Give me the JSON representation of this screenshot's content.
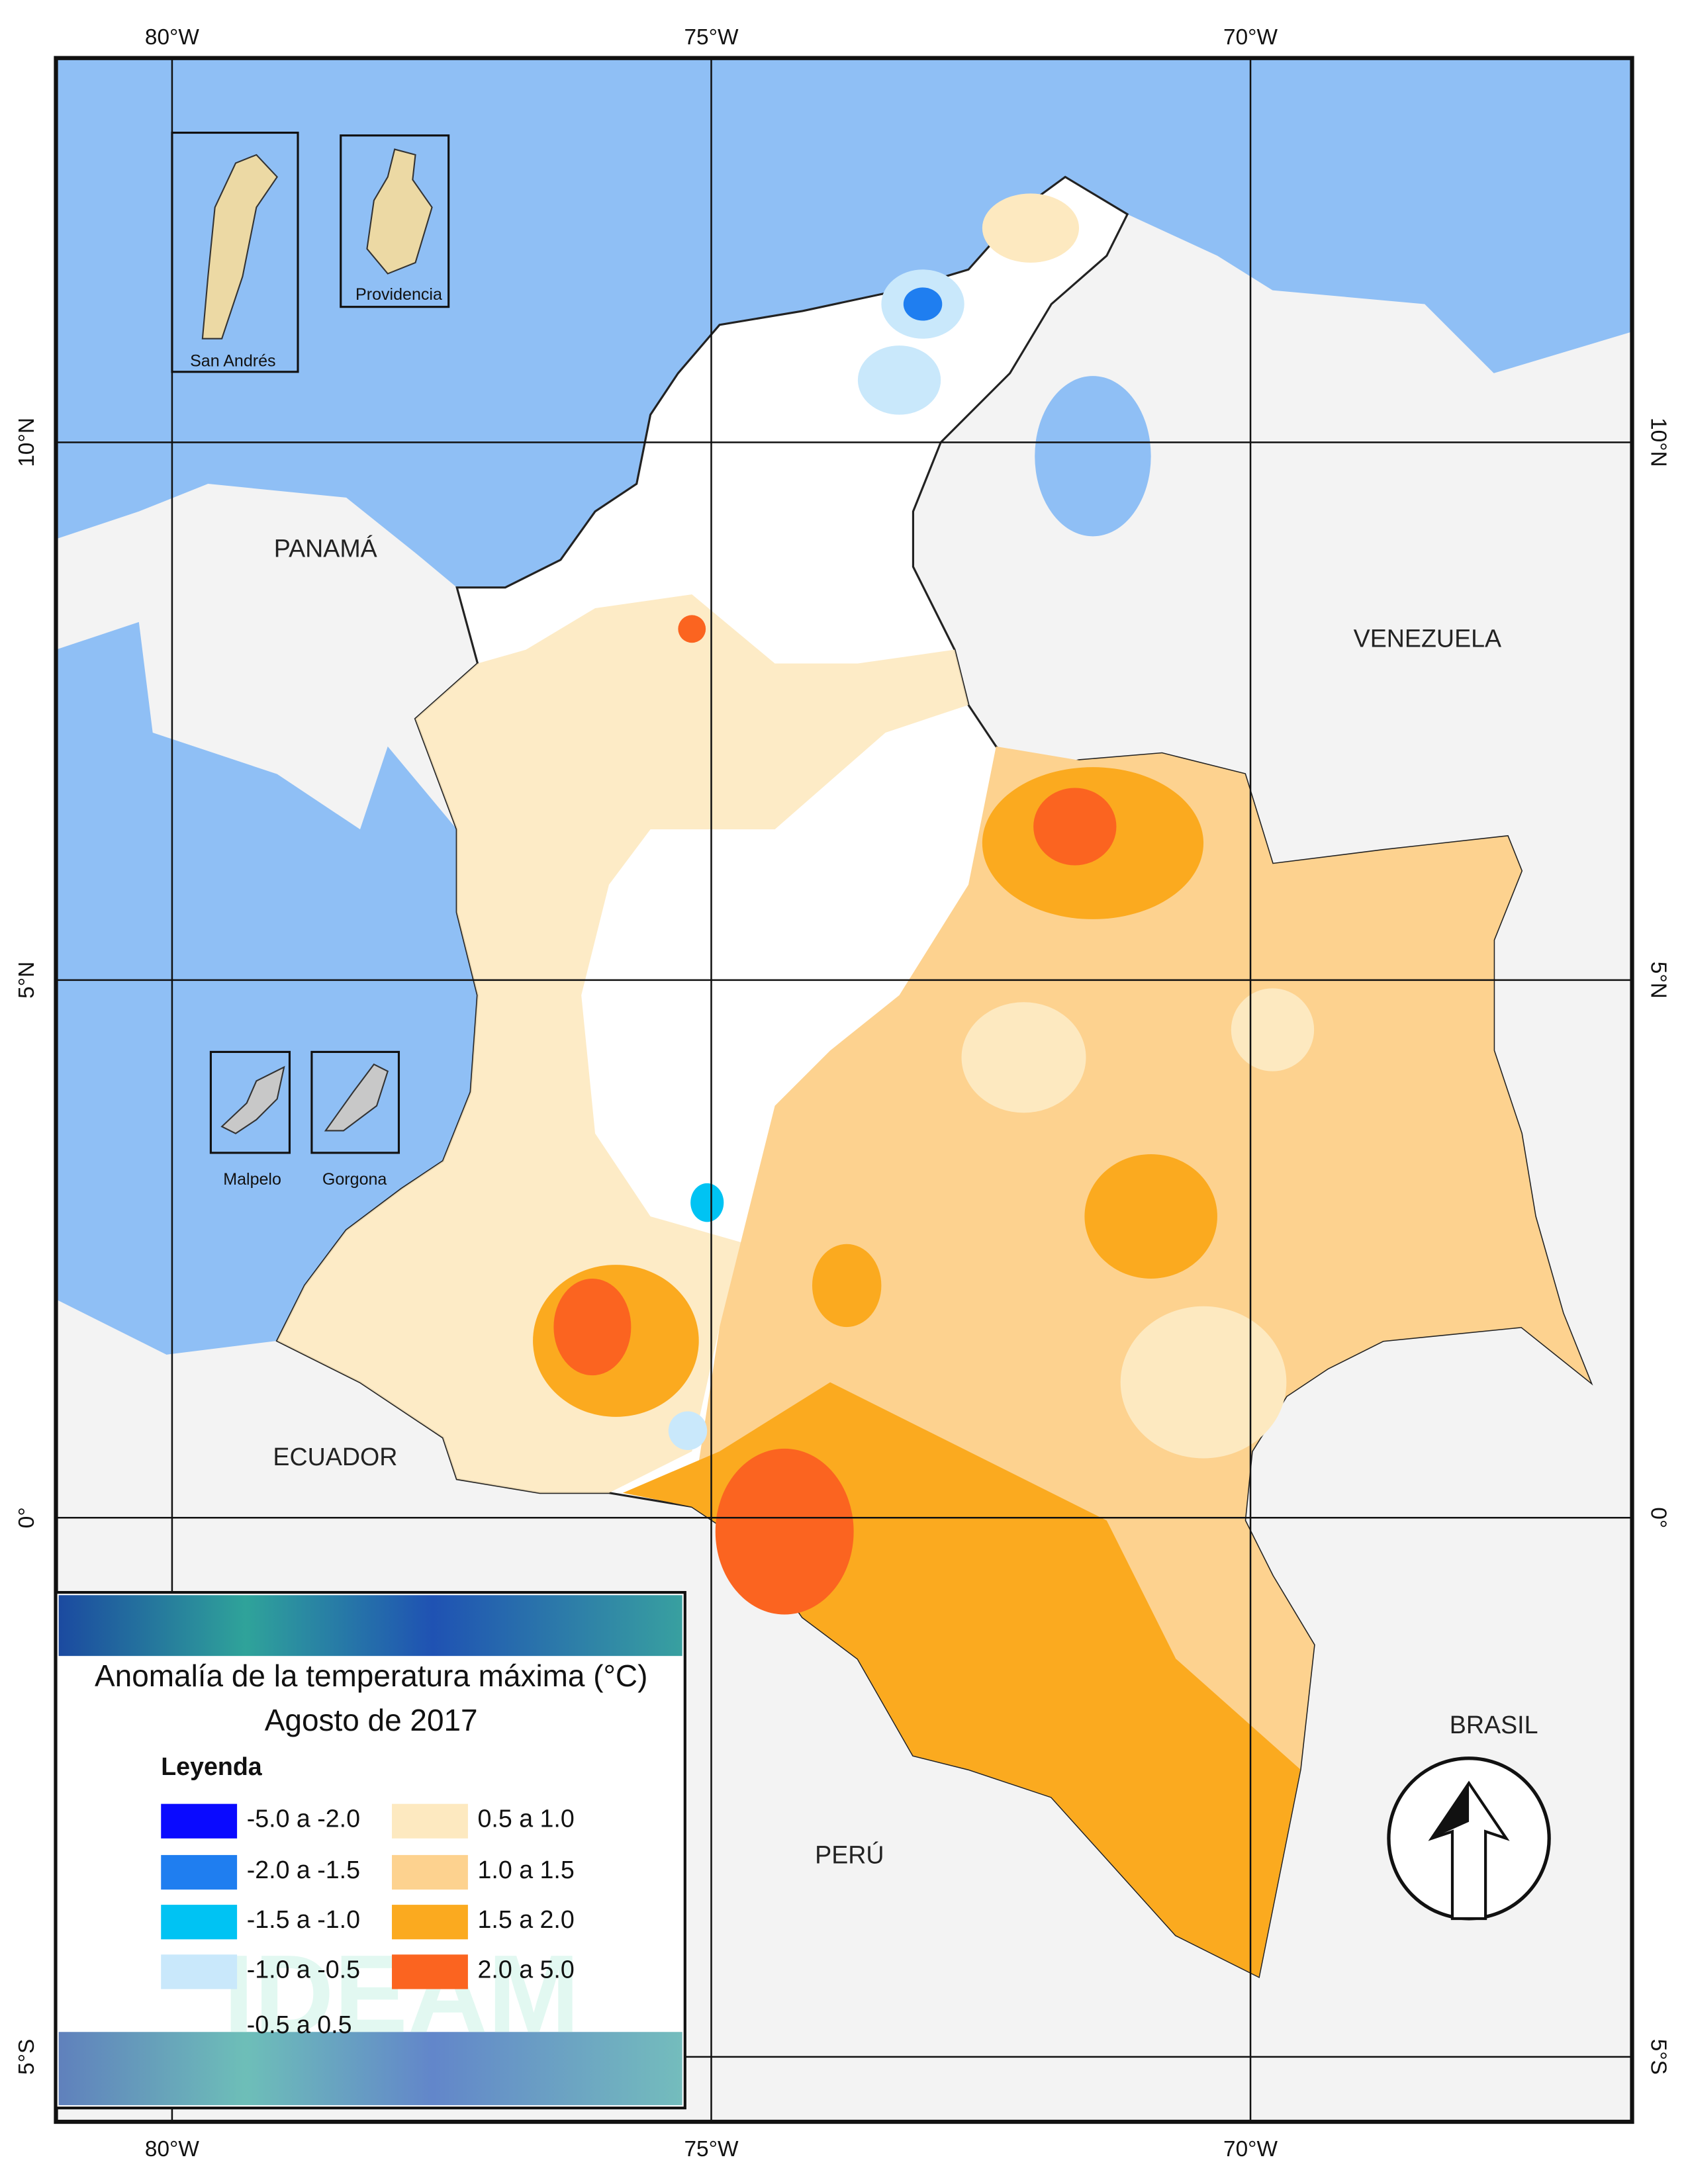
{
  "map": {
    "title": "Anomalía de la temperatura máxima (°C)",
    "subtitle": "Agosto de 2017",
    "longitude_labels": [
      "80°W",
      "75°W",
      "70°W"
    ],
    "latitude_labels": [
      "10°N",
      "5°N",
      "0°",
      "5°S"
    ],
    "places": [
      "PANAMÁ",
      "VENEZUELA",
      "ECUADOR",
      "BRASIL",
      "PERÚ"
    ],
    "insets": [
      "San Andrés",
      "Providencia",
      "Malpelo",
      "Gorgona"
    ],
    "logo": "IDEAM",
    "legend": {
      "title": "Leyenda",
      "items": [
        {
          "label": "-5.0 a -2.0",
          "color": "#0a0aff"
        },
        {
          "label": "-2.0 a -1.5",
          "color": "#1f7ef0"
        },
        {
          "label": "-1.5 a -1.0",
          "color": "#00c3f3"
        },
        {
          "label": "-1.0 a -0.5",
          "color": "#c9e8fb"
        },
        {
          "label": "-0.5 a 0.5",
          "color": "#ffffff"
        },
        {
          "label": "0.5 a 1.0",
          "color": "#fde9c0"
        },
        {
          "label": "1.0 a 1.5",
          "color": "#fdd28f"
        },
        {
          "label": "1.5 a 2.0",
          "color": "#fbaa1f"
        },
        {
          "label": "2.0 a 5.0",
          "color": "#fb6420"
        }
      ]
    }
  }
}
